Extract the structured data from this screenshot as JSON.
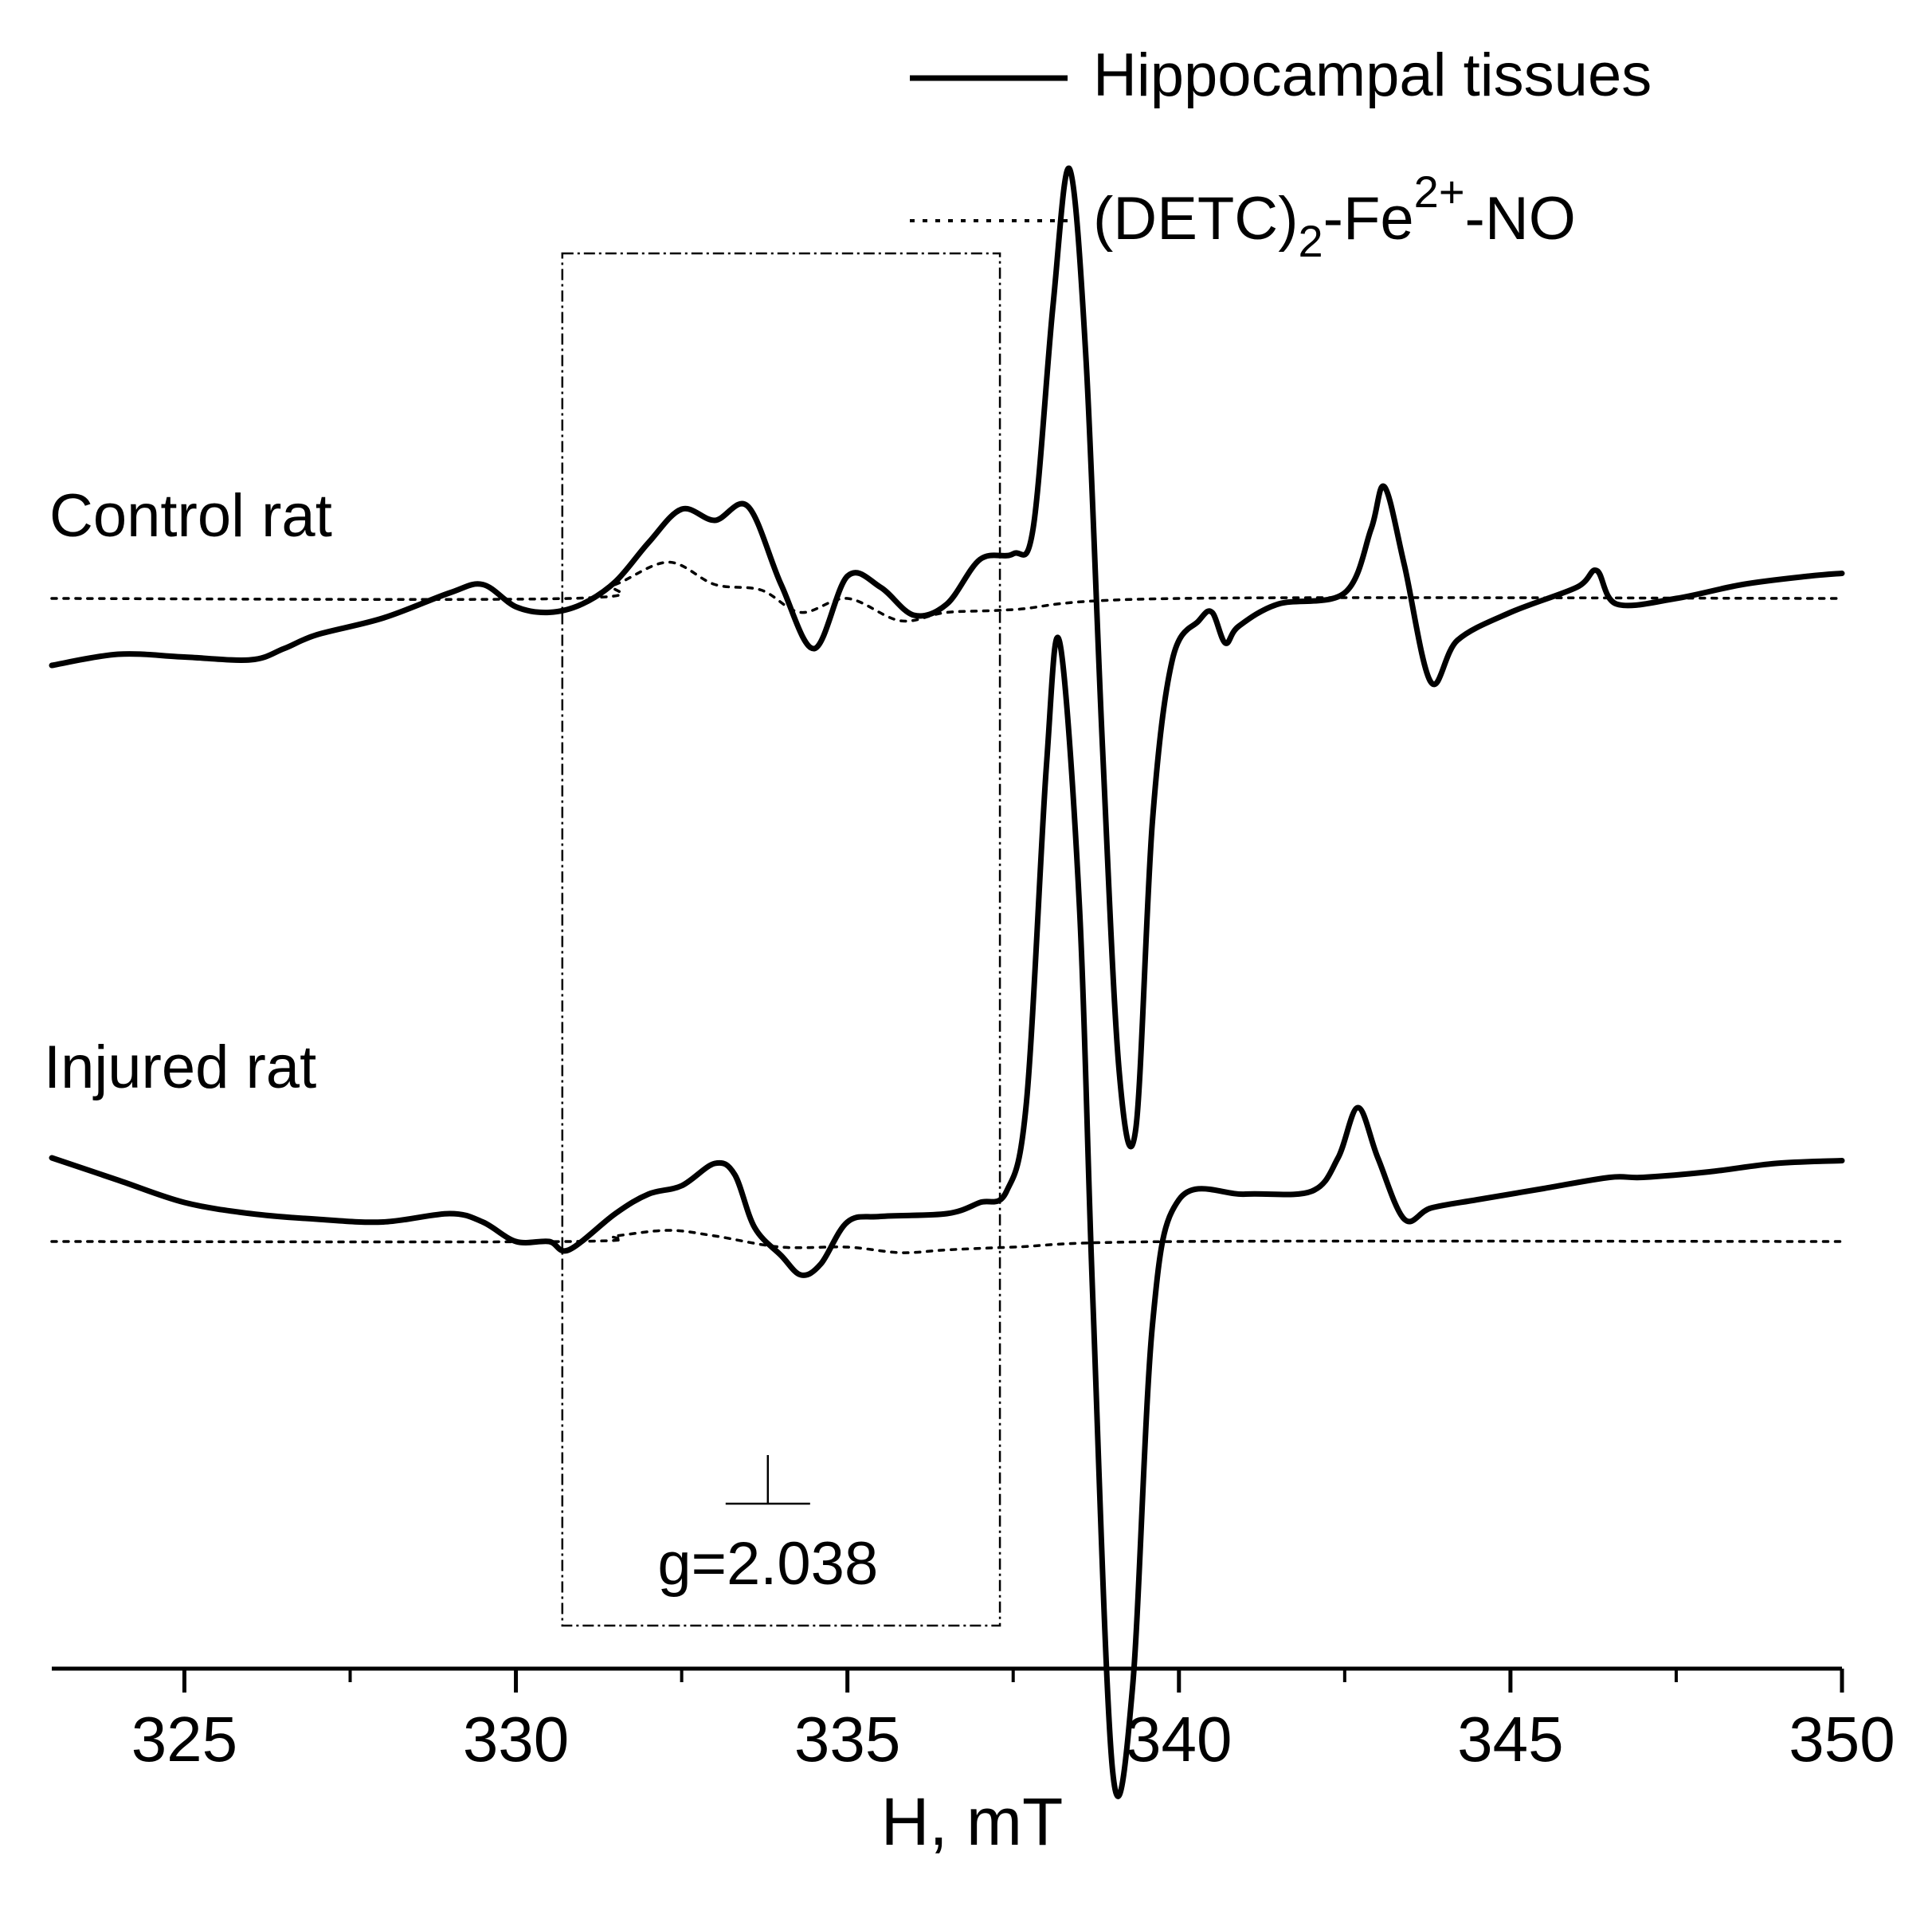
{
  "chart_data": {
    "type": "line",
    "xlabel": "H, mT",
    "xlim": [
      323,
      350
    ],
    "x_ticks": [
      325,
      330,
      335,
      340,
      345,
      350
    ],
    "x_minor_ticks": [
      327.5,
      332.5,
      337.5,
      342.5,
      347.5
    ],
    "y_axis_shown": false,
    "legend": {
      "placement": "top-right",
      "entries": [
        {
          "label": "Hippocampal tissues",
          "style": "solid"
        },
        {
          "label_main": "(DETC)",
          "label_sub": "2",
          "label_mid": "-Fe",
          "label_sup": "2+",
          "label_end": "-NO",
          "style": "dotted"
        }
      ]
    },
    "panels": [
      {
        "label": "Control rat",
        "series": [
          {
            "legend_index": 0,
            "style": "solid",
            "points": [
              [
                323.0,
                -0.24
              ],
              [
                324.0,
                -0.2
              ],
              [
                325.0,
                -0.21
              ],
              [
                326.0,
                -0.22
              ],
              [
                326.5,
                -0.18
              ],
              [
                327.0,
                -0.13
              ],
              [
                328.0,
                -0.07
              ],
              [
                329.0,
                0.02
              ],
              [
                329.5,
                0.05
              ],
              [
                330.0,
                -0.03
              ],
              [
                330.5,
                -0.05
              ],
              [
                331.0,
                -0.02
              ],
              [
                331.5,
                0.06
              ],
              [
                332.0,
                0.2
              ],
              [
                332.5,
                0.32
              ],
              [
                333.0,
                0.28
              ],
              [
                333.5,
                0.33
              ],
              [
                334.0,
                0.05
              ],
              [
                334.5,
                -0.18
              ],
              [
                335.0,
                0.08
              ],
              [
                335.5,
                0.04
              ],
              [
                336.0,
                -0.06
              ],
              [
                336.5,
                -0.02
              ],
              [
                337.0,
                0.14
              ],
              [
                337.5,
                0.16
              ],
              [
                337.8,
                0.25
              ],
              [
                338.1,
                1.05
              ],
              [
                338.35,
                1.54
              ],
              [
                338.6,
                0.85
              ],
              [
                338.85,
                -0.55
              ],
              [
                339.1,
                -1.7
              ],
              [
                339.35,
                -1.9
              ],
              [
                339.6,
                -0.8
              ],
              [
                339.9,
                -0.22
              ],
              [
                340.3,
                -0.08
              ],
              [
                340.5,
                -0.05
              ],
              [
                340.7,
                -0.16
              ],
              [
                340.9,
                -0.1
              ],
              [
                341.5,
                -0.02
              ],
              [
                342.5,
                0.02
              ],
              [
                342.9,
                0.25
              ],
              [
                343.1,
                0.4
              ],
              [
                343.4,
                0.12
              ],
              [
                343.8,
                -0.3
              ],
              [
                344.2,
                -0.15
              ],
              [
                345.0,
                -0.05
              ],
              [
                346.0,
                0.04
              ],
              [
                346.3,
                0.1
              ],
              [
                346.6,
                -0.02
              ],
              [
                347.5,
                0.0
              ],
              [
                348.5,
                0.05
              ],
              [
                349.5,
                0.08
              ],
              [
                350.0,
                0.09
              ]
            ]
          },
          {
            "legend_index": 1,
            "style": "dotted",
            "points": [
              [
                323.0,
                0.0
              ],
              [
                330.8,
                0.0
              ],
              [
                331.5,
                0.05
              ],
              [
                332.3,
                0.13
              ],
              [
                333.0,
                0.05
              ],
              [
                333.7,
                0.03
              ],
              [
                334.3,
                -0.05
              ],
              [
                335.0,
                0.0
              ],
              [
                335.8,
                -0.08
              ],
              [
                336.5,
                -0.05
              ],
              [
                337.5,
                -0.04
              ],
              [
                340.0,
                0.0
              ],
              [
                350.0,
                0.0
              ]
            ]
          }
        ]
      },
      {
        "label": "Injured rat",
        "series": [
          {
            "legend_index": 0,
            "style": "solid",
            "points": [
              [
                323.0,
                0.3
              ],
              [
                324.0,
                0.22
              ],
              [
                325.0,
                0.14
              ],
              [
                326.0,
                0.1
              ],
              [
                327.0,
                0.08
              ],
              [
                328.0,
                0.07
              ],
              [
                329.0,
                0.1
              ],
              [
                329.5,
                0.07
              ],
              [
                330.0,
                0.0
              ],
              [
                330.5,
                0.0
              ],
              [
                330.8,
                -0.03
              ],
              [
                331.5,
                0.1
              ],
              [
                332.0,
                0.17
              ],
              [
                332.5,
                0.2
              ],
              [
                333.0,
                0.28
              ],
              [
                333.3,
                0.24
              ],
              [
                333.6,
                0.05
              ],
              [
                334.0,
                -0.05
              ],
              [
                334.3,
                -0.12
              ],
              [
                334.6,
                -0.08
              ],
              [
                335.0,
                0.07
              ],
              [
                335.5,
                0.09
              ],
              [
                336.5,
                0.1
              ],
              [
                337.0,
                0.14
              ],
              [
                337.4,
                0.18
              ],
              [
                337.7,
                0.5
              ],
              [
                338.0,
                1.7
              ],
              [
                338.2,
                2.15
              ],
              [
                338.5,
                1.2
              ],
              [
                338.7,
                -0.2
              ],
              [
                339.0,
                -1.9
              ],
              [
                339.3,
                -1.6
              ],
              [
                339.6,
                -0.3
              ],
              [
                340.0,
                0.15
              ],
              [
                341.0,
                0.17
              ],
              [
                342.0,
                0.18
              ],
              [
                342.4,
                0.3
              ],
              [
                342.7,
                0.48
              ],
              [
                343.0,
                0.3
              ],
              [
                343.4,
                0.08
              ],
              [
                343.8,
                0.12
              ],
              [
                344.5,
                0.15
              ],
              [
                345.5,
                0.19
              ],
              [
                346.5,
                0.23
              ],
              [
                347.0,
                0.23
              ],
              [
                348.0,
                0.25
              ],
              [
                349.0,
                0.28
              ],
              [
                350.0,
                0.29
              ]
            ]
          },
          {
            "legend_index": 1,
            "style": "dotted",
            "points": [
              [
                323.0,
                0.0
              ],
              [
                330.8,
                0.0
              ],
              [
                331.5,
                0.02
              ],
              [
                332.3,
                0.04
              ],
              [
                333.0,
                0.02
              ],
              [
                334.0,
                -0.02
              ],
              [
                335.0,
                -0.02
              ],
              [
                335.8,
                -0.04
              ],
              [
                336.5,
                -0.03
              ],
              [
                337.5,
                -0.02
              ],
              [
                340.0,
                0.0
              ],
              [
                350.0,
                0.0
              ]
            ]
          }
        ]
      }
    ],
    "annotations": {
      "g_marker": {
        "text": "g=2.038",
        "x": 333.8
      },
      "region_box": {
        "x_range": [
          330.7,
          337.3
        ],
        "style": "dash-dot"
      }
    }
  }
}
